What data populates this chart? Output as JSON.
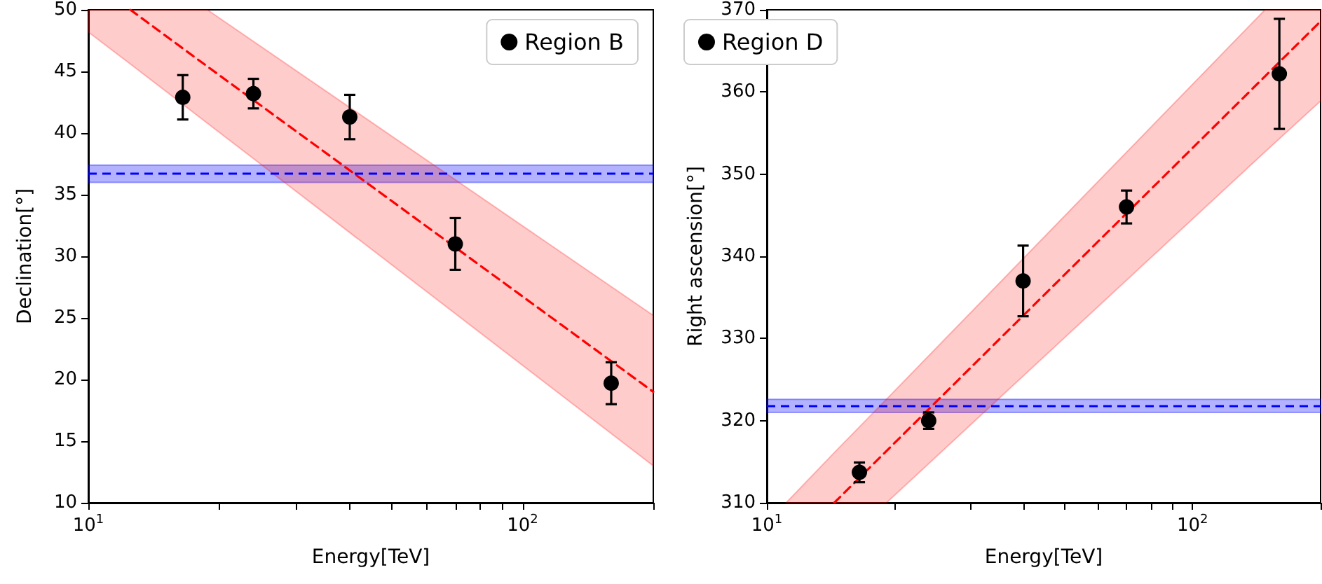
{
  "chart_data": [
    {
      "type": "scatter",
      "xlabel": "Energy[TeV]",
      "ylabel": "Declination[°]",
      "log": "x",
      "legend": "top right",
      "xlim": [
        10,
        200
      ],
      "xticks": [
        {
          "value": 10,
          "label": "10$^{1}$"
        },
        {
          "value": 20,
          "label": null
        },
        {
          "value": 30,
          "label": null
        },
        {
          "value": 40,
          "label": null
        },
        {
          "value": 50,
          "label": null
        },
        {
          "value": 60,
          "label": null
        },
        {
          "value": 70,
          "label": null
        },
        {
          "value": 80,
          "label": null
        },
        {
          "value": 90,
          "label": null
        },
        {
          "value": 100,
          "label": "10$^{2}$"
        },
        {
          "value": 200,
          "label": null
        }
      ],
      "ylim": [
        10,
        50
      ],
      "yticks": [
        10,
        15,
        20,
        25,
        30,
        35,
        40,
        45,
        50
      ],
      "series": [
        {
          "name": "Region B",
          "marker": "circle",
          "color": "#000000",
          "x": [
            16.5,
            24,
            40,
            70,
            160
          ],
          "values": [
            42.9,
            43.2,
            41.3,
            31,
            19.7
          ],
          "errors": [
            1.8,
            1.2,
            1.8,
            2.1,
            1.7
          ]
        },
        {
          "type": "line",
          "line_style": "dashed",
          "marker": "none",
          "color": "#ff0000",
          "x": [
            10,
            12.5,
            18.8,
            200
          ],
          "values": [
            null,
            50,
            45.4,
            19
          ],
          "lower": [
            48.2,
            45.6,
            40.8,
            13
          ],
          "upper": [
            50,
            50,
            50,
            25.2
          ]
        }
      ],
      "ref_lines": [
        {
          "axis": "y",
          "value": 36.7,
          "color": "#0000ff",
          "line_style": "dashed"
        }
      ],
      "bands": [
        {
          "axis": "y",
          "from": 36,
          "to": 37.4,
          "color": "#0000ff"
        }
      ]
    },
    {
      "type": "scatter",
      "xlabel": "Energy[TeV]",
      "ylabel": "Right ascension[°]",
      "log": "x",
      "legend": "top left",
      "xlim": [
        10,
        200
      ],
      "xticks": [
        {
          "value": 10,
          "label": "10$^{1}$"
        },
        {
          "value": 20,
          "label": null
        },
        {
          "value": 30,
          "label": null
        },
        {
          "value": 40,
          "label": null
        },
        {
          "value": 50,
          "label": null
        },
        {
          "value": 60,
          "label": null
        },
        {
          "value": 70,
          "label": null
        },
        {
          "value": 80,
          "label": null
        },
        {
          "value": 90,
          "label": null
        },
        {
          "value": 100,
          "label": "10$^{2}$"
        },
        {
          "value": 200,
          "label": null
        }
      ],
      "ylim": [
        310,
        370
      ],
      "yticks": [
        310,
        320,
        330,
        340,
        350,
        360,
        370
      ],
      "series": [
        {
          "name": "Region D",
          "marker": "circle",
          "color": "#000000",
          "x": [
            16.5,
            24,
            40,
            70,
            160
          ],
          "values": [
            313.7,
            320,
            337,
            346,
            362.2
          ],
          "errors": [
            1.2,
            1,
            4.3,
            2,
            6.7
          ]
        },
        {
          "type": "line",
          "line_style": "dashed",
          "marker": "none",
          "color": "#ff0000",
          "x": [
            11.1,
            14.4,
            19.1,
            148,
            200
          ],
          "values": [
            null,
            310,
            316.3,
            361.9,
            368.6
          ],
          "lower": [
            310,
            310,
            310,
            352.7,
            358.9
          ],
          "upper": [
            310,
            316.1,
            322.6,
            370,
            370
          ]
        }
      ],
      "ref_lines": [
        {
          "axis": "y",
          "value": 321.8,
          "color": "#0000ff",
          "line_style": "dashed"
        }
      ],
      "bands": [
        {
          "axis": "y",
          "from": 321,
          "to": 322.6,
          "color": "#0000ff"
        }
      ]
    }
  ]
}
